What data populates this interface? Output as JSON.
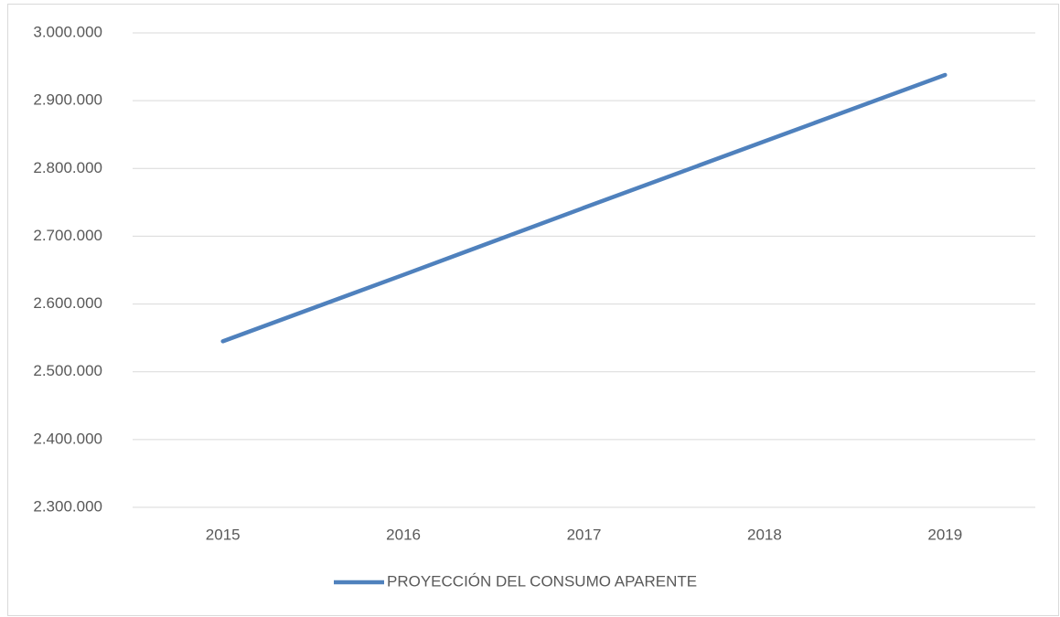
{
  "chart_data": {
    "type": "line",
    "categories": [
      "2015",
      "2016",
      "2017",
      "2018",
      "2019"
    ],
    "series": [
      {
        "name": "PROYECCIÓN DEL CONSUMO APARENTE",
        "color": "#4f81bd",
        "values": [
          2545000,
          2643000,
          2742000,
          2840000,
          2938000
        ]
      }
    ],
    "ylim": [
      2300000,
      3000000
    ],
    "yticks": [
      {
        "value": 2300000,
        "label": "2.300.000"
      },
      {
        "value": 2400000,
        "label": "2.400.000"
      },
      {
        "value": 2500000,
        "label": "2.500.000"
      },
      {
        "value": 2600000,
        "label": "2.600.000"
      },
      {
        "value": 2700000,
        "label": "2.700.000"
      },
      {
        "value": 2800000,
        "label": "2.800.000"
      },
      {
        "value": 2900000,
        "label": "2.900.000"
      },
      {
        "value": 3000000,
        "label": "3.000.000"
      }
    ],
    "grid": true,
    "legend": "bottom"
  }
}
